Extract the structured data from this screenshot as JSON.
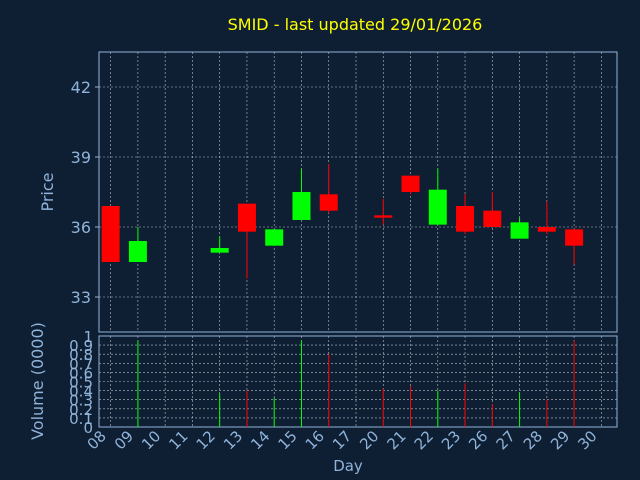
{
  "chart_data": {
    "type": "candlestick",
    "title": "SMID - last updated 29/01/2026",
    "price_panel": {
      "ylabel": "Price",
      "yticks": [
        33,
        36,
        39,
        42
      ],
      "ylim": [
        31.5,
        43.5
      ]
    },
    "volume_panel": {
      "ylabel": "Volume (0000)",
      "yticks": [
        0,
        0.1,
        0.2,
        0.3,
        0.4,
        0.5,
        0.6,
        0.7,
        0.8,
        0.9,
        1
      ],
      "ytick_labels": [
        "0",
        "0.1",
        "0.2",
        "0.3",
        "0.4",
        "0.5",
        "0.6",
        "0.7",
        "0.8",
        "0.9",
        "1"
      ],
      "ylim": [
        0,
        1
      ]
    },
    "xlabel": "Day",
    "x_ticks": [
      "08",
      "09",
      "10",
      "11",
      "12",
      "13",
      "14",
      "15",
      "16",
      "17",
      "20",
      "21",
      "22",
      "23",
      "26",
      "27",
      "28",
      "29",
      "30"
    ],
    "candles": [
      {
        "day": "08",
        "open": 36.9,
        "high": 36.9,
        "low": 34.5,
        "close": 34.5,
        "volume": 0.0
      },
      {
        "day": "09",
        "open": 34.5,
        "high": 36.0,
        "low": 34.5,
        "close": 35.4,
        "volume": 0.95
      },
      {
        "day": "12",
        "open": 34.9,
        "high": 35.6,
        "low": 34.9,
        "close": 35.1,
        "volume": 0.37
      },
      {
        "day": "13",
        "open": 37.0,
        "high": 37.0,
        "low": 33.8,
        "close": 35.8,
        "volume": 0.4
      },
      {
        "day": "14",
        "open": 35.2,
        "high": 35.9,
        "low": 35.2,
        "close": 35.9,
        "volume": 0.32
      },
      {
        "day": "15",
        "open": 36.3,
        "high": 38.5,
        "low": 36.3,
        "close": 37.5,
        "volume": 0.95
      },
      {
        "day": "16",
        "open": 37.4,
        "high": 38.7,
        "low": 36.6,
        "close": 36.7,
        "volume": 0.8
      },
      {
        "day": "20",
        "open": 36.5,
        "high": 37.2,
        "low": 36.1,
        "close": 36.4,
        "volume": 0.42
      },
      {
        "day": "21",
        "open": 38.2,
        "high": 38.2,
        "low": 37.4,
        "close": 37.5,
        "volume": 0.45
      },
      {
        "day": "22",
        "open": 36.1,
        "high": 38.5,
        "low": 36.1,
        "close": 37.6,
        "volume": 0.4
      },
      {
        "day": "23",
        "open": 36.9,
        "high": 37.4,
        "low": 35.7,
        "close": 35.8,
        "volume": 0.48
      },
      {
        "day": "26",
        "open": 36.7,
        "high": 37.5,
        "low": 36.0,
        "close": 36.0,
        "volume": 0.25
      },
      {
        "day": "27",
        "open": 35.5,
        "high": 36.4,
        "low": 35.5,
        "close": 36.2,
        "volume": 0.38
      },
      {
        "day": "28",
        "open": 36.0,
        "high": 37.1,
        "low": 35.7,
        "close": 35.8,
        "volume": 0.3
      },
      {
        "day": "29",
        "open": 35.9,
        "high": 35.9,
        "low": 34.4,
        "close": 35.2,
        "volume": 0.95
      }
    ],
    "colors": {
      "background": "#0f1f33",
      "text": "#8fb3d9",
      "title": "#ffff00",
      "up": "#00ff00",
      "down": "#ff0000",
      "grid": "#ffffff",
      "axis": "#8fb3d9"
    },
    "grid": true
  }
}
